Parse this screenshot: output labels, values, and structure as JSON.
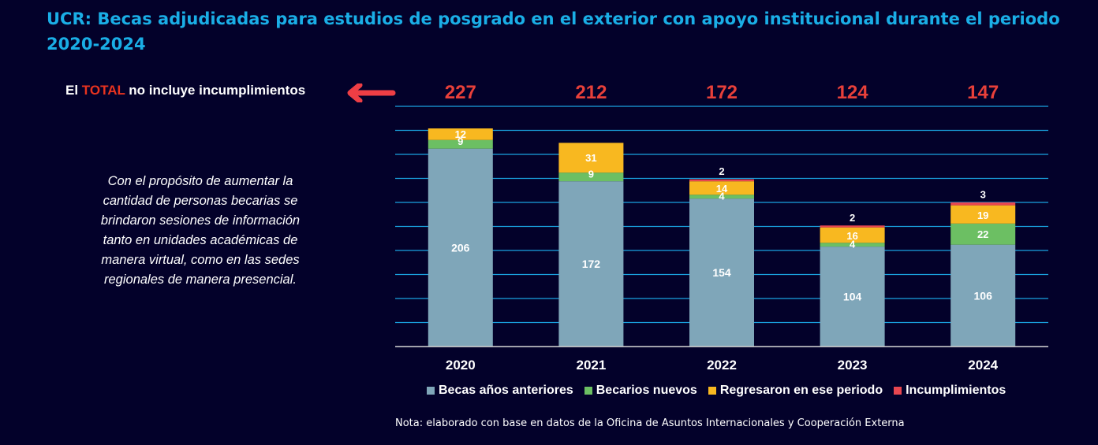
{
  "title": "UCR: Becas adjudicadas para estudios de posgrado en el exterior con apoyo institucional durante el periodo 2020-2024",
  "total_note": {
    "prefix": "El ",
    "highlight": "TOTAL",
    "suffix": " no incluye incumplimientos"
  },
  "purpose_text": "Con el propósito de aumentar la cantidad de personas becarias se brindaron sesiones de información tanto en unidades académicas de manera virtual, como en las sedes regionales de manera presencial.",
  "footnote": "Nota: elaborado con base en datos de la Oficina de Asuntos Internacionales y Cooperación Externa",
  "colors": {
    "background": "#03012a",
    "title": "#1aaee6",
    "total": "#e8403a",
    "gridline": "#1aa3e0"
  },
  "icons": {
    "pointer": "left-arrow-icon"
  },
  "chart_data": {
    "type": "bar",
    "stacked": true,
    "categories": [
      "2020",
      "2021",
      "2022",
      "2023",
      "2024"
    ],
    "totals": [
      "227",
      "212",
      "172",
      "124",
      "147"
    ],
    "series": [
      {
        "name": "Becas años anteriores",
        "color": "#7fa6b9",
        "values": [
          206,
          172,
          154,
          104,
          106
        ]
      },
      {
        "name": "Becarios nuevos",
        "color": "#6cbf63",
        "values": [
          9,
          9,
          4,
          4,
          22
        ]
      },
      {
        "name": "Regresaron en ese periodo",
        "color": "#f8b820",
        "values": [
          12,
          31,
          14,
          16,
          19
        ]
      },
      {
        "name": "Incumplimientos",
        "color": "#e84650",
        "values": [
          0,
          0,
          2,
          2,
          3
        ]
      }
    ],
    "ylim": [
      0,
      250
    ],
    "grid": true,
    "legend": "bottom"
  }
}
